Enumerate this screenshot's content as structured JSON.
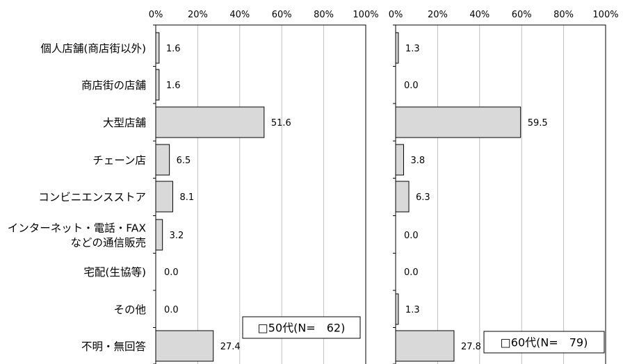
{
  "chart_data": [
    {
      "type": "bar",
      "orientation": "horizontal",
      "categories": [
        [
          "個人店舗(商店街以外)"
        ],
        [
          "商店街の店舗"
        ],
        [
          "大型店舗"
        ],
        [
          "チェーン店"
        ],
        [
          "コンビニエンスストア"
        ],
        [
          "インターネット・電話・FAX",
          "などの通信販売"
        ],
        [
          "宅配(生協等)"
        ],
        [
          "その他"
        ],
        [
          "不明・無回答"
        ]
      ],
      "values": [
        1.6,
        1.6,
        51.6,
        6.5,
        8.1,
        3.2,
        0.0,
        0.0,
        27.4
      ],
      "value_labels": [
        "1.6",
        "1.6",
        "51.6",
        "6.5",
        "8.1",
        "3.2",
        "0.0",
        "0.0",
        "27.4"
      ],
      "x_ticks": [
        "0%",
        "20%",
        "40%",
        "60%",
        "80%",
        "100%"
      ],
      "xlim": [
        0,
        100
      ],
      "grid": true,
      "legend": "□50代(N=　62)",
      "legend_position": "bottom-right"
    },
    {
      "type": "bar",
      "orientation": "horizontal",
      "values": [
        1.3,
        0.0,
        59.5,
        3.8,
        6.3,
        0.0,
        0.0,
        1.3,
        27.8
      ],
      "value_labels": [
        "1.3",
        "0.0",
        "59.5",
        "3.8",
        "6.3",
        "0.0",
        "0.0",
        "1.3",
        "27.8"
      ],
      "x_ticks": [
        "0%",
        "20%",
        "40%",
        "60%",
        "80%",
        "100%"
      ],
      "xlim": [
        0,
        100
      ],
      "grid": true,
      "legend": "□60代(N=　79)",
      "legend_position": "bottom-right"
    }
  ],
  "colors": {
    "bar_fill": "#d9d9d9",
    "bar_stroke": "#000000",
    "grid": "#bfbfbf",
    "frame": "#000000"
  }
}
